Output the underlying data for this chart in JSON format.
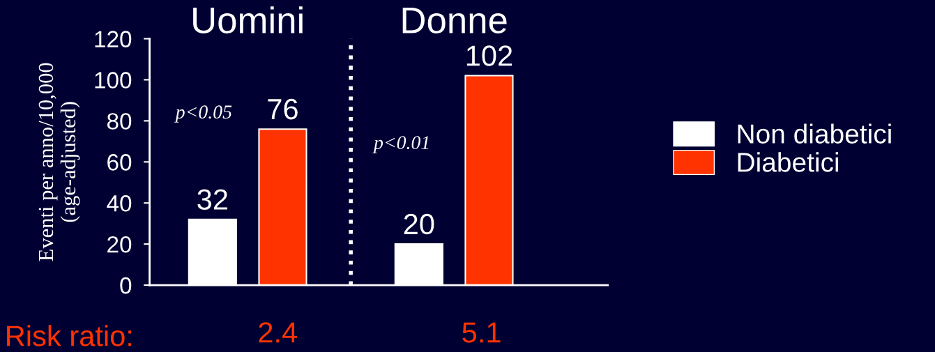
{
  "chart_data": {
    "type": "bar",
    "categories": [
      "Uomini",
      "Donne"
    ],
    "series": [
      {
        "name": "Non diabetici",
        "color": "#ffffff",
        "values": [
          32,
          20
        ]
      },
      {
        "name": "Diabetici",
        "color": "#ff3300",
        "values": [
          76,
          102
        ]
      }
    ],
    "ylabel": "Eventi per anno/10,000\n(age-adjusted)",
    "ylim": [
      0,
      120
    ],
    "yticks": [
      0,
      20,
      40,
      60,
      80,
      100,
      120
    ],
    "data_labels": true,
    "grid": false,
    "legend": "right",
    "annotations": [
      "p<0.05",
      "p<0.01",
      "Risk ratio:",
      "2.4",
      "5.1"
    ]
  }
}
